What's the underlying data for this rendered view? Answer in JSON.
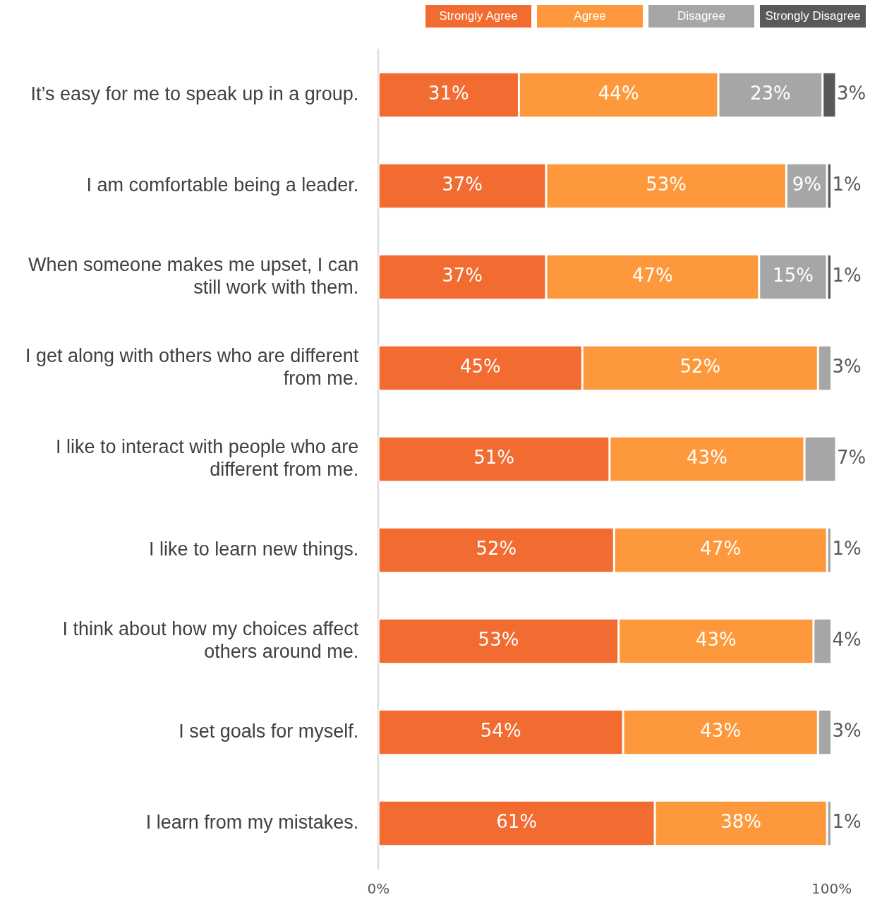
{
  "chart_data": {
    "type": "bar",
    "orientation": "horizontal",
    "stacked": true,
    "legend": "top right",
    "grid": false,
    "categories": [
      "It’s easy for me to speak up in a group.",
      "I am comfortable being a leader.",
      "When someone makes me upset, I can still work with them.",
      "I get along with others who are different from me.",
      "I like to interact with people who are different from me.",
      "I like to learn new things.",
      "I think about how my choices affect others around me.",
      "I set goals for myself.",
      "I learn from my mistakes."
    ],
    "xlim": [
      0,
      101
    ],
    "xticks": [
      {
        "value": 0,
        "label": "0%"
      },
      {
        "value": 100,
        "label": "100%"
      }
    ],
    "series": [
      {
        "name": "Strongly Agree",
        "color": "#f26b30",
        "values": [
          31,
          37,
          37,
          45,
          51,
          52,
          53,
          54,
          61
        ],
        "value_labels": [
          "31%",
          "37%",
          "37%",
          "45%",
          "51%",
          "52%",
          "53%",
          "54%",
          "61%"
        ]
      },
      {
        "name": "Agree",
        "color": "#fd993c",
        "values": [
          44,
          53,
          47,
          52,
          43,
          47,
          43,
          43,
          38
        ],
        "value_labels": [
          "44%",
          "53%",
          "47%",
          "52%",
          "43%",
          "47%",
          "43%",
          "43%",
          "38%"
        ]
      },
      {
        "name": "Disagree",
        "color": "#a6a6a6",
        "values": [
          23,
          9,
          15,
          3,
          7,
          1,
          4,
          3,
          1
        ],
        "value_labels": [
          "23%",
          "9%",
          "15%",
          "3%",
          "7%",
          "1%",
          "4%",
          "3%",
          "1%"
        ]
      },
      {
        "name": "Strongly Disagree",
        "color": "#595959",
        "values": [
          3,
          1,
          1,
          null,
          null,
          null,
          null,
          null,
          null
        ],
        "value_labels": [
          "3%",
          "1%",
          "1%",
          null,
          null,
          null,
          null,
          null,
          null
        ]
      }
    ]
  }
}
